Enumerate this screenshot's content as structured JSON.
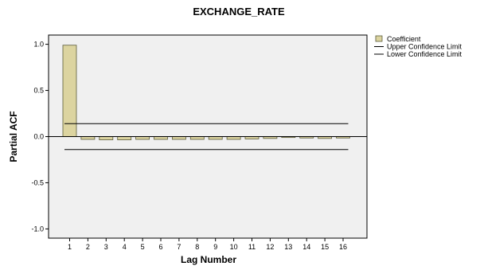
{
  "chart_data": {
    "type": "bar",
    "title": "EXCHANGE_RATE",
    "xlabel": "Lag Number",
    "ylabel": "Partial ACF",
    "categories": [
      "1",
      "2",
      "3",
      "4",
      "5",
      "6",
      "7",
      "8",
      "9",
      "10",
      "11",
      "12",
      "13",
      "14",
      "15",
      "16"
    ],
    "series": [
      {
        "name": "Coefficient",
        "values": [
          0.99,
          -0.03,
          -0.035,
          -0.035,
          -0.03,
          -0.03,
          -0.03,
          -0.03,
          -0.03,
          -0.03,
          -0.025,
          -0.02,
          -0.01,
          -0.015,
          -0.02,
          -0.015
        ]
      }
    ],
    "upper_confidence_limit": 0.14,
    "lower_confidence_limit": -0.14,
    "ylim": [
      -1.1,
      1.1
    ],
    "yticks": [
      -1.0,
      -0.5,
      0.0,
      0.5,
      1.0
    ],
    "ytick_labels": [
      "-1.0",
      "-0.5",
      "0.0",
      "0.5",
      "1.0"
    ],
    "zero_line": true,
    "grid": false,
    "legend": {
      "placement": "top-right",
      "entries": [
        {
          "label": "Coefficient",
          "kind": "bar"
        },
        {
          "label": "Upper Confidence Limit",
          "kind": "line"
        },
        {
          "label": "Lower Confidence Limit",
          "kind": "line"
        }
      ]
    },
    "colors": {
      "bar_fill": "#dcd4a0",
      "bar_stroke": "#5a5a3a",
      "plot_background": "#f0f0f0",
      "line": "#000000"
    }
  }
}
